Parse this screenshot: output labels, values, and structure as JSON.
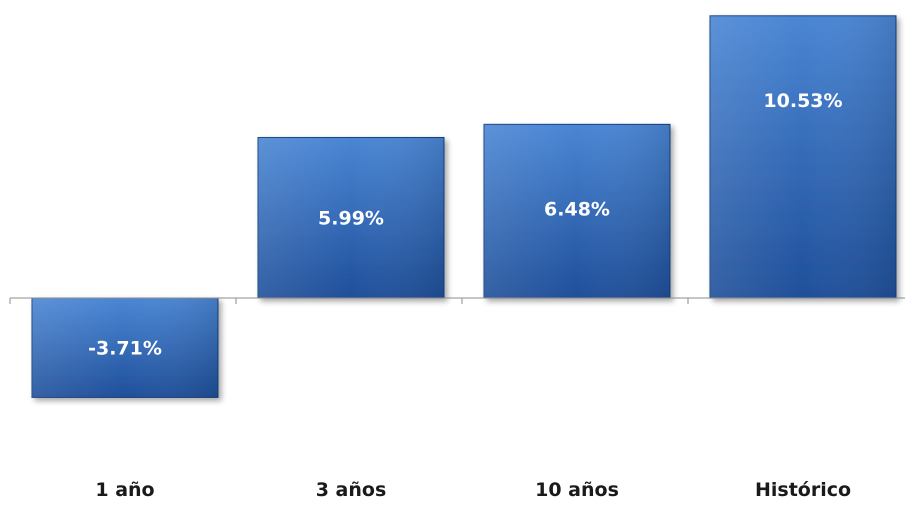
{
  "chart_data": {
    "type": "bar",
    "categories": [
      "1 año",
      "3 años",
      "10 años",
      "Histórico"
    ],
    "values": [
      -3.71,
      5.99,
      6.48,
      10.53
    ],
    "value_labels": [
      "-3.71%",
      "5.99%",
      "6.48%",
      "10.53%"
    ],
    "ylim": [
      -5,
      11
    ],
    "grid": false,
    "legend": "none",
    "colors": {
      "bar_top": "#4a86d4",
      "bar_bottom": "#1f4f9a",
      "bar_edge": "#17407e",
      "axis": "#8c8c8c"
    }
  }
}
